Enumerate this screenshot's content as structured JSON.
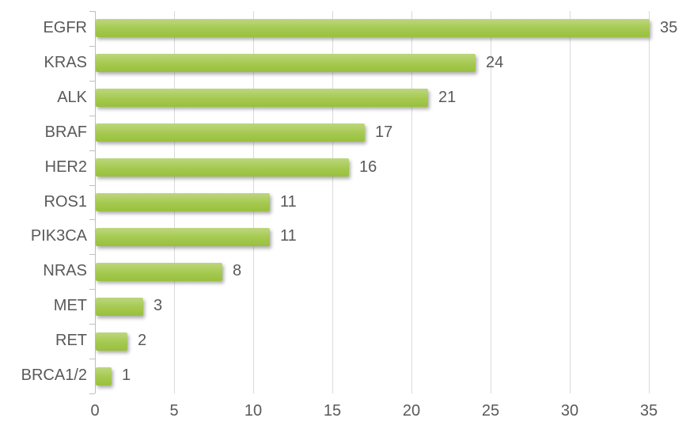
{
  "chart_data": {
    "type": "bar",
    "orientation": "horizontal",
    "title": "",
    "xlabel": "",
    "ylabel": "",
    "categories": [
      "EGFR",
      "KRAS",
      "ALK",
      "BRAF",
      "HER2",
      "ROS1",
      "PIK3CA",
      "NRAS",
      "MET",
      "RET",
      "BRCA1/2"
    ],
    "values": [
      35,
      24,
      21,
      17,
      16,
      11,
      11,
      8,
      3,
      2,
      1
    ],
    "value_labels": [
      "35",
      "24",
      "21",
      "17",
      "16",
      "11",
      "11",
      "8",
      "3",
      "2",
      "1"
    ],
    "xlim": [
      0,
      35
    ],
    "xticks": [
      0,
      5,
      10,
      15,
      20,
      25,
      30,
      35
    ],
    "grid": "vertical",
    "legend": "none",
    "colors": {
      "bar_gradient_top": "#bcd77d",
      "bar_gradient_mid": "#a5c94f",
      "bar_gradient_bottom": "#99c03e",
      "gridline": "#d9d9d9",
      "axis_line": "#bfbfbf",
      "text": "#595959",
      "background": "#ffffff"
    }
  }
}
